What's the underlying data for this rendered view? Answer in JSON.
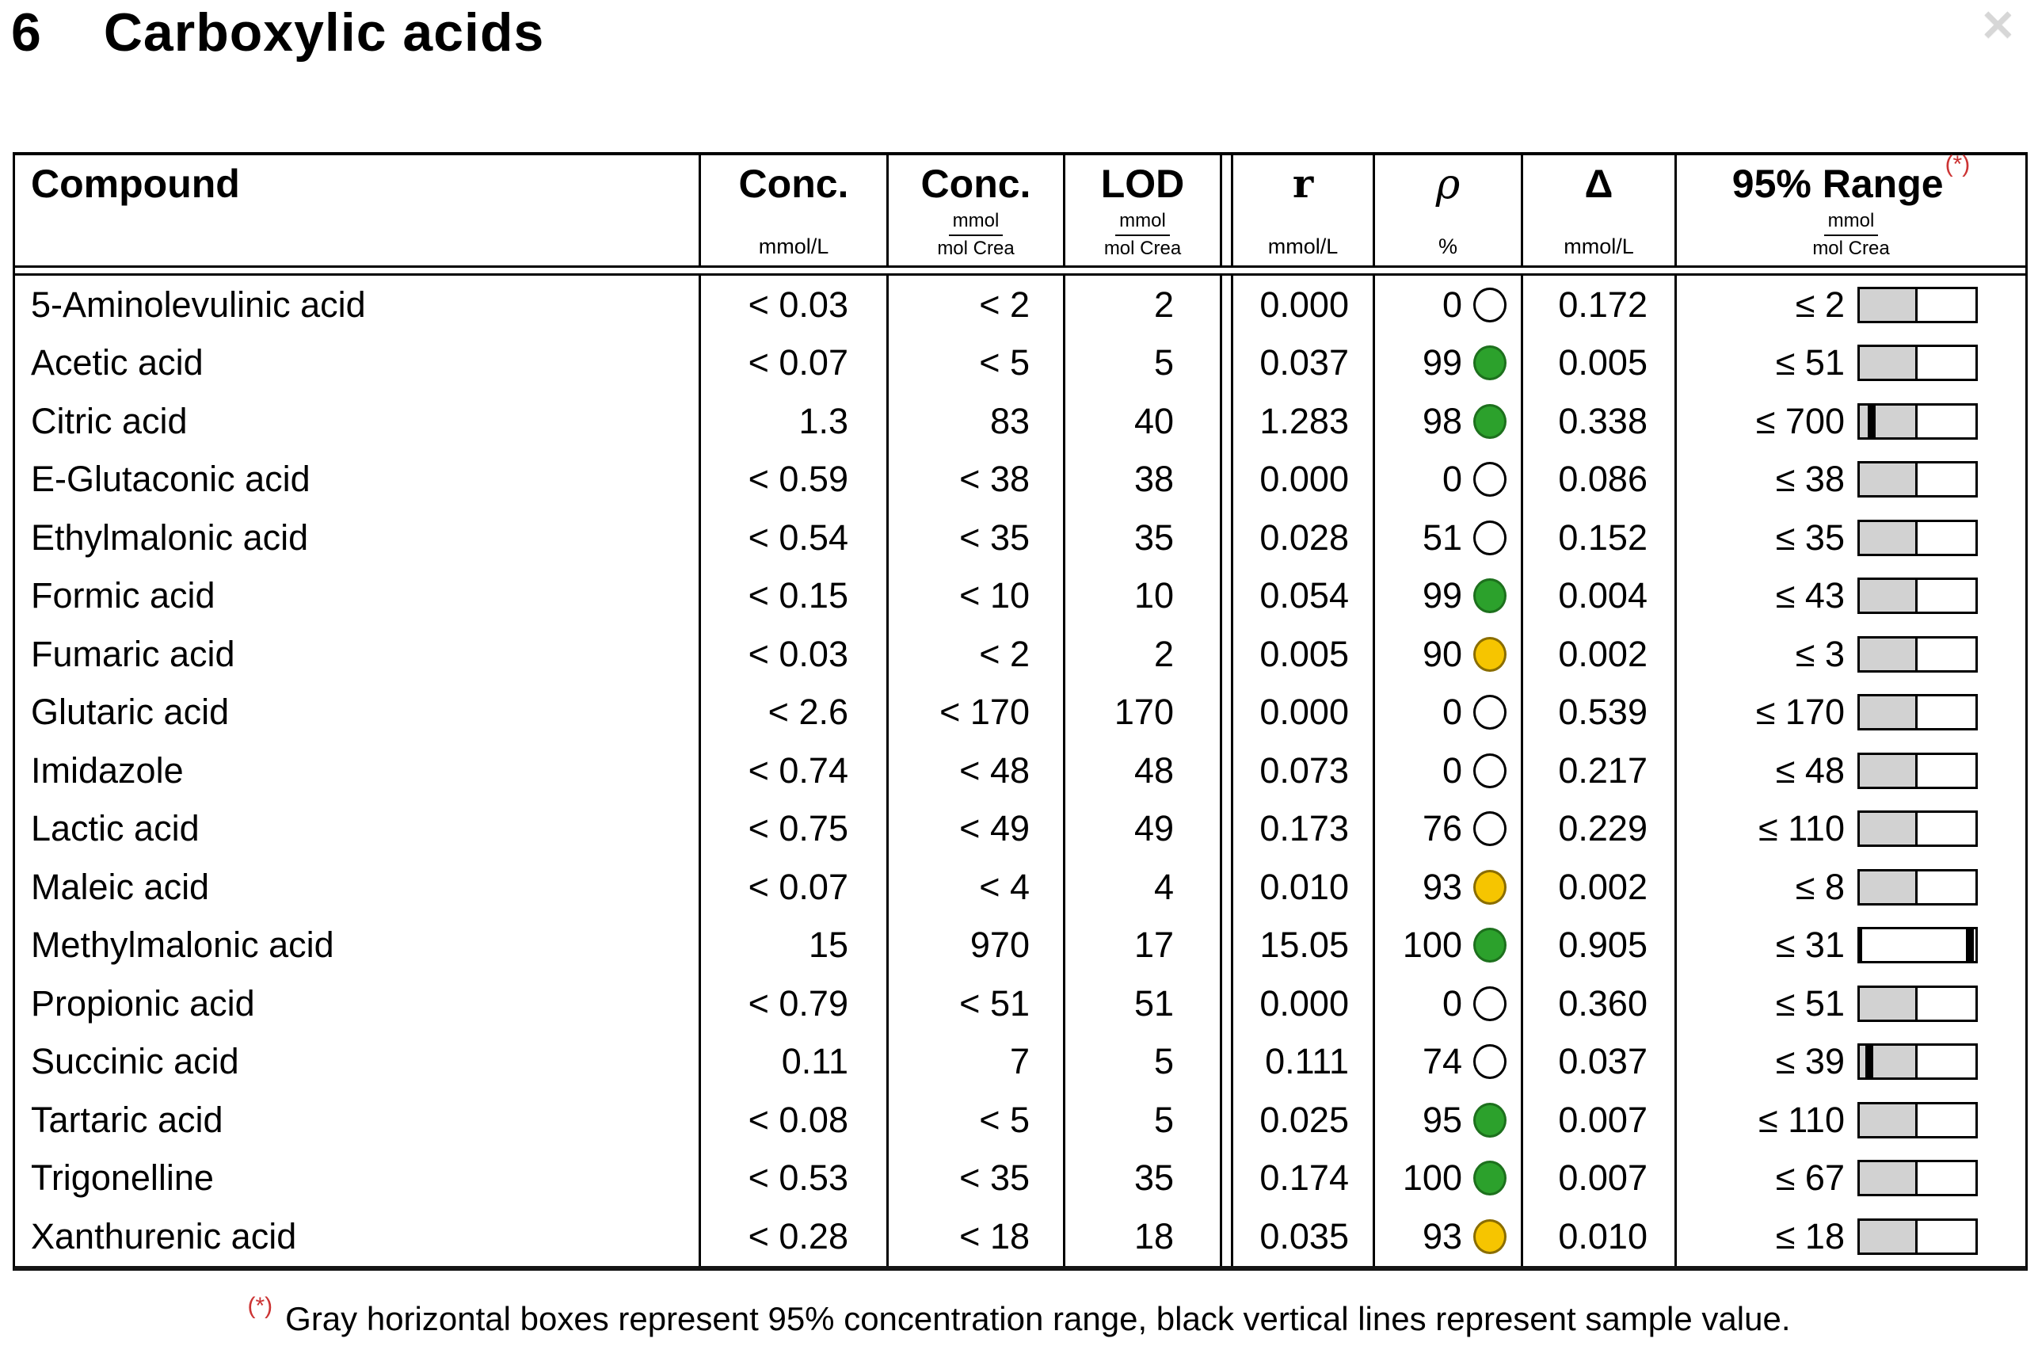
{
  "page": {
    "section_number": "6",
    "title": "Carboxylic acids",
    "close_icon": "✕"
  },
  "header": {
    "compound": "Compound",
    "conc1": {
      "label": "Conc.",
      "unit": "mmol/L"
    },
    "conc2": {
      "label": "Conc.",
      "unit_num": "mmol",
      "unit_den": "mol Crea"
    },
    "lod": {
      "label": "LOD",
      "unit_num": "mmol",
      "unit_den": "mol Crea"
    },
    "r": {
      "label": "r",
      "unit": "mmol/L"
    },
    "rho": {
      "label": "ρ",
      "unit": "%"
    },
    "delta": {
      "label": "Δ",
      "unit": "mmol/L"
    },
    "range": {
      "label": "95% Range",
      "sup": "(*)",
      "unit_num": "mmol",
      "unit_den": "mol Crea"
    }
  },
  "rows": [
    {
      "compound": "5-Aminolevulinic acid",
      "conc1": "< 0.03",
      "conc2": "< 2",
      "lod": "2",
      "r": "0.000",
      "rho": "0",
      "status": "none",
      "delta": "0.172",
      "range": "≤ 2",
      "bar": {
        "gray": 50,
        "marker": null
      }
    },
    {
      "compound": "Acetic acid",
      "conc1": "< 0.07",
      "conc2": "< 5",
      "lod": "5",
      "r": "0.037",
      "rho": "99",
      "status": "green",
      "delta": "0.005",
      "range": "≤ 51",
      "bar": {
        "gray": 50,
        "marker": null
      }
    },
    {
      "compound": "Citric acid",
      "conc1": "1.3",
      "conc2": "83",
      "lod": "40",
      "r": "1.283",
      "rho": "98",
      "status": "green",
      "delta": "0.338",
      "range": "≤ 700",
      "bar": {
        "gray": 50,
        "marker": 7
      }
    },
    {
      "compound": "E-Glutaconic acid",
      "conc1": "< 0.59",
      "conc2": "< 38",
      "lod": "38",
      "r": "0.000",
      "rho": "0",
      "status": "none",
      "delta": "0.086",
      "range": "≤ 38",
      "bar": {
        "gray": 50,
        "marker": null
      }
    },
    {
      "compound": "Ethylmalonic acid",
      "conc1": "< 0.54",
      "conc2": "< 35",
      "lod": "35",
      "r": "0.028",
      "rho": "51",
      "status": "none",
      "delta": "0.152",
      "range": "≤ 35",
      "bar": {
        "gray": 50,
        "marker": null
      }
    },
    {
      "compound": "Formic acid",
      "conc1": "< 0.15",
      "conc2": "< 10",
      "lod": "10",
      "r": "0.054",
      "rho": "99",
      "status": "green",
      "delta": "0.004",
      "range": "≤ 43",
      "bar": {
        "gray": 50,
        "marker": null
      }
    },
    {
      "compound": "Fumaric acid",
      "conc1": "< 0.03",
      "conc2": "< 2",
      "lod": "2",
      "r": "0.005",
      "rho": "90",
      "status": "yellow",
      "delta": "0.002",
      "range": "≤ 3",
      "bar": {
        "gray": 50,
        "marker": null
      }
    },
    {
      "compound": "Glutaric acid",
      "conc1": "< 2.6",
      "conc2": "< 170",
      "lod": "170",
      "r": "0.000",
      "rho": "0",
      "status": "none",
      "delta": "0.539",
      "range": "≤ 170",
      "bar": {
        "gray": 50,
        "marker": null
      }
    },
    {
      "compound": "Imidazole",
      "conc1": "< 0.74",
      "conc2": "< 48",
      "lod": "48",
      "r": "0.073",
      "rho": "0",
      "status": "none",
      "delta": "0.217",
      "range": "≤ 48",
      "bar": {
        "gray": 50,
        "marker": null
      }
    },
    {
      "compound": "Lactic acid",
      "conc1": "< 0.75",
      "conc2": "< 49",
      "lod": "49",
      "r": "0.173",
      "rho": "76",
      "status": "none",
      "delta": "0.229",
      "range": "≤ 110",
      "bar": {
        "gray": 50,
        "marker": null
      }
    },
    {
      "compound": "Maleic acid",
      "conc1": "< 0.07",
      "conc2": "< 4",
      "lod": "4",
      "r": "0.010",
      "rho": "93",
      "status": "yellow",
      "delta": "0.002",
      "range": "≤ 8",
      "bar": {
        "gray": 50,
        "marker": null
      }
    },
    {
      "compound": "Methylmalonic acid",
      "conc1": "15",
      "conc2": "970",
      "lod": "17",
      "r": "15.05",
      "rho": "100",
      "status": "green",
      "delta": "0.905",
      "range": "≤ 31",
      "bar": {
        "gray": 1.5,
        "marker": 92
      }
    },
    {
      "compound": "Propionic acid",
      "conc1": "< 0.79",
      "conc2": "< 51",
      "lod": "51",
      "r": "0.000",
      "rho": "0",
      "status": "none",
      "delta": "0.360",
      "range": "≤ 51",
      "bar": {
        "gray": 50,
        "marker": null
      }
    },
    {
      "compound": "Succinic acid",
      "conc1": "0.11",
      "conc2": "7",
      "lod": "5",
      "r": "0.111",
      "rho": "74",
      "status": "none",
      "delta": "0.037",
      "range": "≤ 39",
      "bar": {
        "gray": 50,
        "marker": 5
      }
    },
    {
      "compound": "Tartaric acid",
      "conc1": "< 0.08",
      "conc2": "< 5",
      "lod": "5",
      "r": "0.025",
      "rho": "95",
      "status": "green",
      "delta": "0.007",
      "range": "≤ 110",
      "bar": {
        "gray": 50,
        "marker": null
      }
    },
    {
      "compound": "Trigonelline",
      "conc1": "< 0.53",
      "conc2": "< 35",
      "lod": "35",
      "r": "0.174",
      "rho": "100",
      "status": "green",
      "delta": "0.007",
      "range": "≤ 67",
      "bar": {
        "gray": 50,
        "marker": null
      }
    },
    {
      "compound": "Xanthurenic acid",
      "conc1": "< 0.28",
      "conc2": "< 18",
      "lod": "18",
      "r": "0.035",
      "rho": "93",
      "status": "yellow",
      "delta": "0.010",
      "range": "≤ 18",
      "bar": {
        "gray": 50,
        "marker": null
      }
    }
  ],
  "footnote": {
    "marker": "(*)",
    "text": "Gray horizontal boxes represent 95% concentration range, black vertical lines represent sample value."
  },
  "colors": {
    "green": "#2ca12c",
    "yellow": "#f6c500",
    "gray_box": "#d2d2d2",
    "red": "#cc3333",
    "close_gray": "#d7d7d7"
  }
}
